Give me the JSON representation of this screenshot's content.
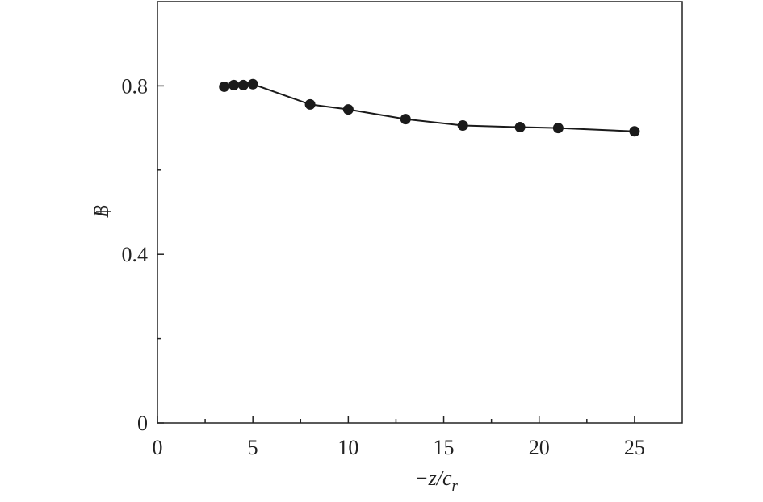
{
  "chart_data": {
    "type": "line",
    "color": "#1a1a1a",
    "xlabel": {
      "main": "−z/c",
      "sub": "r"
    },
    "ylabel": "B",
    "x": [
      3.5,
      4,
      4.5,
      5,
      8,
      10,
      13,
      16,
      19,
      21,
      25
    ],
    "values": [
      0.798,
      0.802,
      0.802,
      0.804,
      0.756,
      0.744,
      0.721,
      0.706,
      0.702,
      0.7,
      0.692
    ],
    "xlim": [
      0,
      27.5
    ],
    "ylim": [
      0,
      1.0
    ],
    "xticks": [
      0,
      5,
      10,
      15,
      20,
      25
    ],
    "yticks": [
      0,
      0.4,
      0.8
    ],
    "xminorticks": [
      2.5,
      7.5,
      12.5,
      17.5,
      22.5
    ],
    "yminorticks": [
      0.2,
      0.6
    ]
  }
}
